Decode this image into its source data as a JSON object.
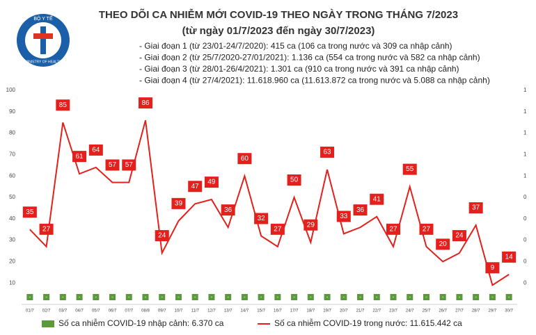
{
  "logo": {
    "top": "BỘ Y TẾ",
    "bottom": "MINISTRY OF HEALTH"
  },
  "chart_data": {
    "type": "line",
    "title": "THEO DÕI CA NHIỄM MỚI COVID-19 THEO NGÀY TRONG THÁNG 7/2023",
    "subtitle": "(từ ngày 01/7/2023 đến ngày 30/7/2023)",
    "annotations": [
      "- Giai đoạn 1 (từ 23/01-24/7/2020): 415 ca (106 ca trong nước và 309 ca nhập cảnh)",
      "- Giai đoạn 2 (từ 25/7/2020-27/01/2021): 1.136 ca (554 ca trong nước và 582 ca nhập cảnh)",
      "- Giai đoạn 3 (từ 28/01-26/4/2021): 1.301 ca (910 ca trong nước và 391 ca nhập cảnh)",
      "- Giai đoạn 4 (từ 27/4/2021): 11.618.960 ca (11.613.872 ca trong nước và 5.088 ca nhập cảnh)"
    ],
    "categories": [
      "01/7",
      "02/7",
      "03/7",
      "04/7",
      "05/7",
      "06/7",
      "07/7",
      "08/8",
      "09/7",
      "10/7",
      "11/7",
      "12/7",
      "13/7",
      "14/7",
      "15/7",
      "16/7",
      "17/7",
      "18/7",
      "19/7",
      "20/7",
      "21/7",
      "22/7",
      "23/7",
      "24/7",
      "25/7",
      "26/7",
      "27/7",
      "28/7",
      "29/7",
      "30/7"
    ],
    "series": [
      {
        "name": "Số ca nhiễm COVID-19 nhập cảnh: 6.370 ca",
        "color": "#5a9a3c",
        "axis": "y2",
        "values": [
          0,
          0,
          0,
          0,
          0,
          0,
          0,
          0,
          0,
          0,
          0,
          0,
          0,
          0,
          0,
          0,
          0,
          0,
          0,
          0,
          0,
          0,
          0,
          0,
          0,
          0,
          0,
          0,
          0,
          0
        ],
        "value_labels": [
          "-",
          "-",
          "-",
          "-",
          "-",
          "-",
          "-",
          "-",
          "-",
          "-",
          "-",
          "-",
          "-",
          "-",
          "-",
          "-",
          "-",
          "-",
          "-",
          "-",
          "-",
          "-",
          "-",
          "-",
          "-",
          "-",
          "-",
          "-",
          "-",
          "-"
        ]
      },
      {
        "name": "Số ca nhiễm COVID-19 trong nước: 11.615.442 ca",
        "color": "#e3201b",
        "values": [
          35,
          27,
          85,
          61,
          64,
          57,
          57,
          86,
          24,
          39,
          47,
          49,
          36,
          60,
          32,
          27,
          50,
          29,
          63,
          33,
          36,
          41,
          27,
          55,
          27,
          20,
          24,
          37,
          9,
          14
        ]
      }
    ],
    "ylim": [
      0,
      100
    ],
    "yticks": [
      10,
      20,
      30,
      40,
      50,
      60,
      70,
      80,
      90,
      100
    ],
    "y2lim": [
      0,
      1
    ],
    "y2ticks": [
      {
        "value": 0.1,
        "label": "0"
      },
      {
        "value": 0.2,
        "label": "0"
      },
      {
        "value": 0.3,
        "label": "0"
      },
      {
        "value": 0.4,
        "label": "0"
      },
      {
        "value": 0.5,
        "label": "0"
      },
      {
        "value": 0.6,
        "label": "1"
      },
      {
        "value": 0.7,
        "label": "1"
      },
      {
        "value": 0.8,
        "label": "1"
      },
      {
        "value": 0.9,
        "label": "1"
      },
      {
        "value": 1,
        "label": "1"
      }
    ],
    "grid": false
  }
}
